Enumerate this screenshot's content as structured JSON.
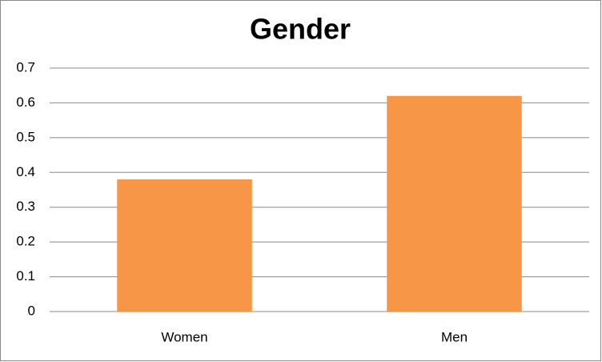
{
  "chart_data": {
    "type": "bar",
    "title": "Gender",
    "categories": [
      "Women",
      "Men"
    ],
    "values": [
      0.38,
      0.62
    ],
    "color": "#f79646",
    "ylim": [
      0,
      0.7
    ],
    "yticks": [
      0,
      0.1,
      0.2,
      0.3,
      0.4,
      0.5,
      0.6,
      0.7
    ],
    "grid": true
  }
}
